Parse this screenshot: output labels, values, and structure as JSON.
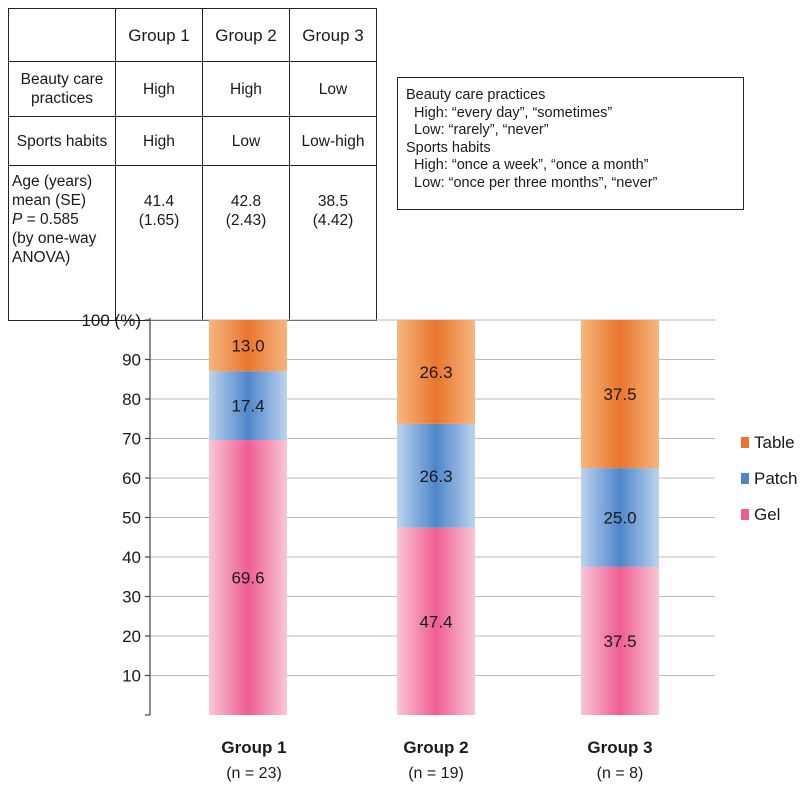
{
  "table": {
    "header": [
      "",
      "Group 1",
      "Group 2",
      "Group 3"
    ],
    "rows": {
      "beauty": {
        "label": "Beauty care practices",
        "values": [
          "High",
          "High",
          "Low"
        ]
      },
      "sports": {
        "label": "Sports habits",
        "values": [
          "High",
          "Low",
          "Low-high"
        ]
      },
      "age": {
        "label_lines": [
          "Age (years)",
          "mean (SE)",
          "P",
          "= 0.585",
          "(by one-way",
          "ANOVA)"
        ],
        "means": [
          "41.4",
          "42.8",
          "38.5"
        ],
        "se": [
          "(1.65)",
          "(2.43)",
          "(4.42)"
        ]
      }
    }
  },
  "definitions": {
    "beauty_title": "Beauty care practices",
    "beauty_high": "High: “every day”, “sometimes”",
    "beauty_low": "Low: “rarely”, “never”",
    "sports_title": "Sports habits",
    "sports_high": "High: “once a week”, “once a month”",
    "sports_low": "Low: “once per three months”, “never”"
  },
  "groups": [
    {
      "name": "Group 1",
      "n": "(n = 23)"
    },
    {
      "name": "Group 2",
      "n": "(n = 19)"
    },
    {
      "name": "Group 3",
      "n": "(n = 8)"
    }
  ],
  "colors": {
    "table_main": "#e9762e",
    "table_light": "#f6b67e",
    "patch_main": "#4f86cb",
    "patch_light": "#bcd3ee",
    "gel_main": "#ee5d92",
    "gel_light": "#f9c6d6",
    "axis": "#444444",
    "grid": "#bbbbbb"
  },
  "chart_data": {
    "type": "bar",
    "stacked": true,
    "categories": [
      "Group 1",
      "Group 2",
      "Group 3"
    ],
    "series": [
      {
        "name": "Gel",
        "values": [
          69.6,
          47.4,
          37.5
        ],
        "labels": [
          "69.6",
          "47.4",
          "37.5"
        ]
      },
      {
        "name": "Patch",
        "values": [
          17.4,
          26.3,
          25.0
        ],
        "labels": [
          "17.4",
          "26.3",
          "25.0"
        ]
      },
      {
        "name": "Table",
        "values": [
          13.0,
          26.3,
          37.5
        ],
        "labels": [
          "13.0",
          "26.3",
          "37.5"
        ]
      }
    ],
    "yticks": [
      "10",
      "20",
      "30",
      "40",
      "50",
      "60",
      "70",
      "80",
      "90",
      "100 (%)"
    ],
    "ylim": [
      0,
      100
    ],
    "grid": true,
    "legend": {
      "position": "right",
      "order": [
        "Table",
        "Patch",
        "Gel"
      ]
    }
  }
}
